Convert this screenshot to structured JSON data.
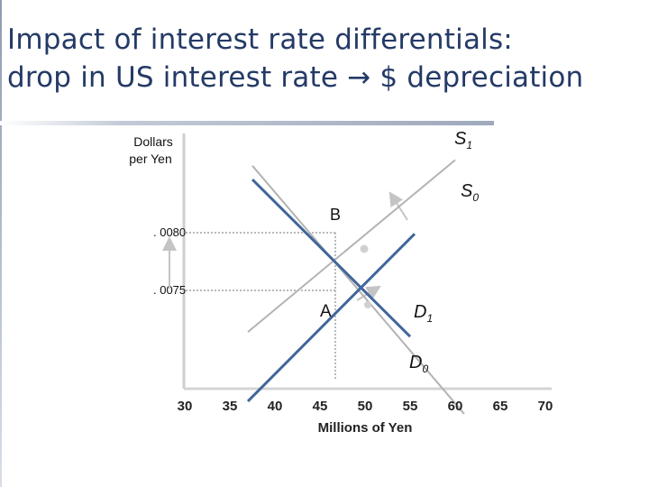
{
  "slide": {
    "title_line1": "Impact of interest rate differentials:",
    "title_line2": "drop in US interest rate → $ depreciation",
    "colors": {
      "title": "#243a66",
      "supply_line": "#b3b3b3",
      "demand_line": "#41669a",
      "dotted": "#b9b9b9"
    }
  },
  "chart_data": {
    "type": "line",
    "ylabel_line1": "Dollars",
    "ylabel_line2": "per Yen",
    "xlabel": "Millions of Yen",
    "x_ticks": [
      30,
      35,
      40,
      45,
      50,
      55,
      60,
      65,
      70
    ],
    "xlim": [
      30,
      70
    ],
    "y_tick_labels": [
      ". 0080",
      ". 0075"
    ],
    "series": [
      {
        "name": "S₁",
        "role": "supply",
        "points": [
          [
            37.5,
            0.00858
          ],
          [
            61,
            0.00643
          ]
        ]
      },
      {
        "name": "S₀",
        "role": "supply",
        "points": [
          [
            37,
            0.00714
          ],
          [
            60,
            0.00863
          ]
        ]
      },
      {
        "name": "D₁",
        "role": "demand",
        "points": [
          [
            37.5,
            0.00846
          ],
          [
            55,
            0.0071
          ]
        ]
      },
      {
        "name": "D₀",
        "role": "demand",
        "points": [
          [
            37,
            0.00654
          ],
          [
            55.5,
            0.00799
          ]
        ]
      }
    ],
    "points": [
      {
        "label": "A",
        "x": 46.5,
        "y": 0.0075
      },
      {
        "label": "B",
        "x": 46.5,
        "y": 0.008
      }
    ],
    "annotations": {
      "S1": "S",
      "S1_sub": "1",
      "S0": "S",
      "S0_sub": "0",
      "D1": "D",
      "D1_sub": "1",
      "D0": "D",
      "D0_sub": "0",
      "B": "B",
      "A": "A"
    }
  }
}
